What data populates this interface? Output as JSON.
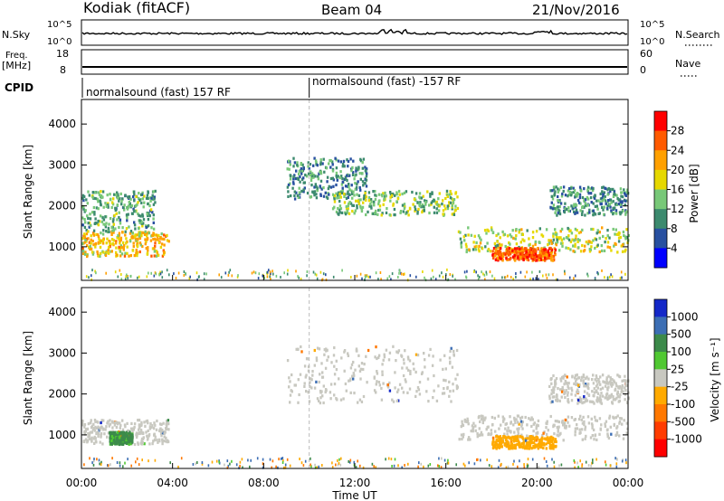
{
  "header": {
    "station": "Kodiak (fitACF)",
    "beam": "Beam 04",
    "date": "21/Nov/2016"
  },
  "nsky_panel": {
    "left_label": "N.Sky",
    "right_label": "N.Search",
    "left_ticks": [
      "10^5",
      "10^0"
    ],
    "right_ticks": [
      "10^5",
      "10^0"
    ]
  },
  "freq_panel": {
    "left_label_1": "Freq.",
    "left_label_2": "[MHz]",
    "right_label": "Nave",
    "left_ticks": [
      "18",
      "8"
    ],
    "right_ticks": [
      "60",
      "0"
    ]
  },
  "cpid_panel": {
    "label": "CPID",
    "segments": [
      "normalsound (fast) 157 RF",
      "normalsound (fast) -157 RF"
    ],
    "switch_hour": 10.0
  },
  "power_colorbar": {
    "label": "Power [dB]",
    "ticks": [
      "28",
      "24",
      "20",
      "16",
      "12",
      "8",
      "4"
    ],
    "colors": [
      "#ff0000",
      "#ff5a00",
      "#ffa000",
      "#e6d800",
      "#78c878",
      "#3c8a6e",
      "#2850a0",
      "#0000ff"
    ]
  },
  "velocity_colorbar": {
    "label": "Velocity [m s⁻¹]",
    "ticks": [
      "1000",
      "500",
      "100",
      "25",
      "-25",
      "-100",
      "-500",
      "-1000"
    ],
    "colors": [
      "#1428c8",
      "#3c6eb4",
      "#3c8a4a",
      "#50c832",
      "#c8c8c0",
      "#ffaa00",
      "#ff7800",
      "#ff3c00",
      "#ff0000"
    ]
  },
  "chart_data": {
    "type": "heatmap",
    "xlabel": "Time UT",
    "ylabel": "Slant Range [km]",
    "x_ticks": [
      "00:00",
      "04:00",
      "08:00",
      "12:00",
      "16:00",
      "20:00",
      "00:00"
    ],
    "y_ticks": [
      "1000",
      "2000",
      "3000",
      "4000"
    ],
    "xlim_hours": [
      0,
      24
    ],
    "ylim_km": [
      180,
      4600
    ],
    "power_regions": [
      {
        "t0": 0.0,
        "t1": 3.8,
        "r0": 800,
        "r1": 1400,
        "level": 20
      },
      {
        "t0": 0.0,
        "t1": 3.2,
        "r0": 1400,
        "r1": 2400,
        "level": 12
      },
      {
        "t0": 9.0,
        "t1": 12.5,
        "r0": 2200,
        "r1": 3200,
        "level": 10
      },
      {
        "t0": 11.0,
        "t1": 16.5,
        "r0": 1800,
        "r1": 2400,
        "level": 14
      },
      {
        "t0": 16.5,
        "t1": 24.0,
        "r0": 900,
        "r1": 1500,
        "level": 16
      },
      {
        "t0": 18.0,
        "t1": 20.8,
        "r0": 700,
        "r1": 1000,
        "level": 26
      },
      {
        "t0": 20.5,
        "t1": 24.0,
        "r0": 1800,
        "r1": 2500,
        "level": 10
      }
    ],
    "velocity_regions": [
      {
        "t0": 0.0,
        "t1": 3.8,
        "r0": 800,
        "r1": 1400,
        "v": 0
      },
      {
        "t0": 1.2,
        "t1": 2.2,
        "r0": 800,
        "r1": 1100,
        "v": 60
      },
      {
        "t0": 9.0,
        "t1": 16.5,
        "r0": 1800,
        "r1": 3200,
        "v": 0
      },
      {
        "t0": 16.5,
        "t1": 24.0,
        "r0": 900,
        "r1": 1500,
        "v": 0
      },
      {
        "t0": 18.0,
        "t1": 20.8,
        "r0": 700,
        "r1": 1000,
        "v": -80
      },
      {
        "t0": 20.5,
        "t1": 24.0,
        "r0": 1800,
        "r1": 2500,
        "v": 0
      }
    ]
  }
}
